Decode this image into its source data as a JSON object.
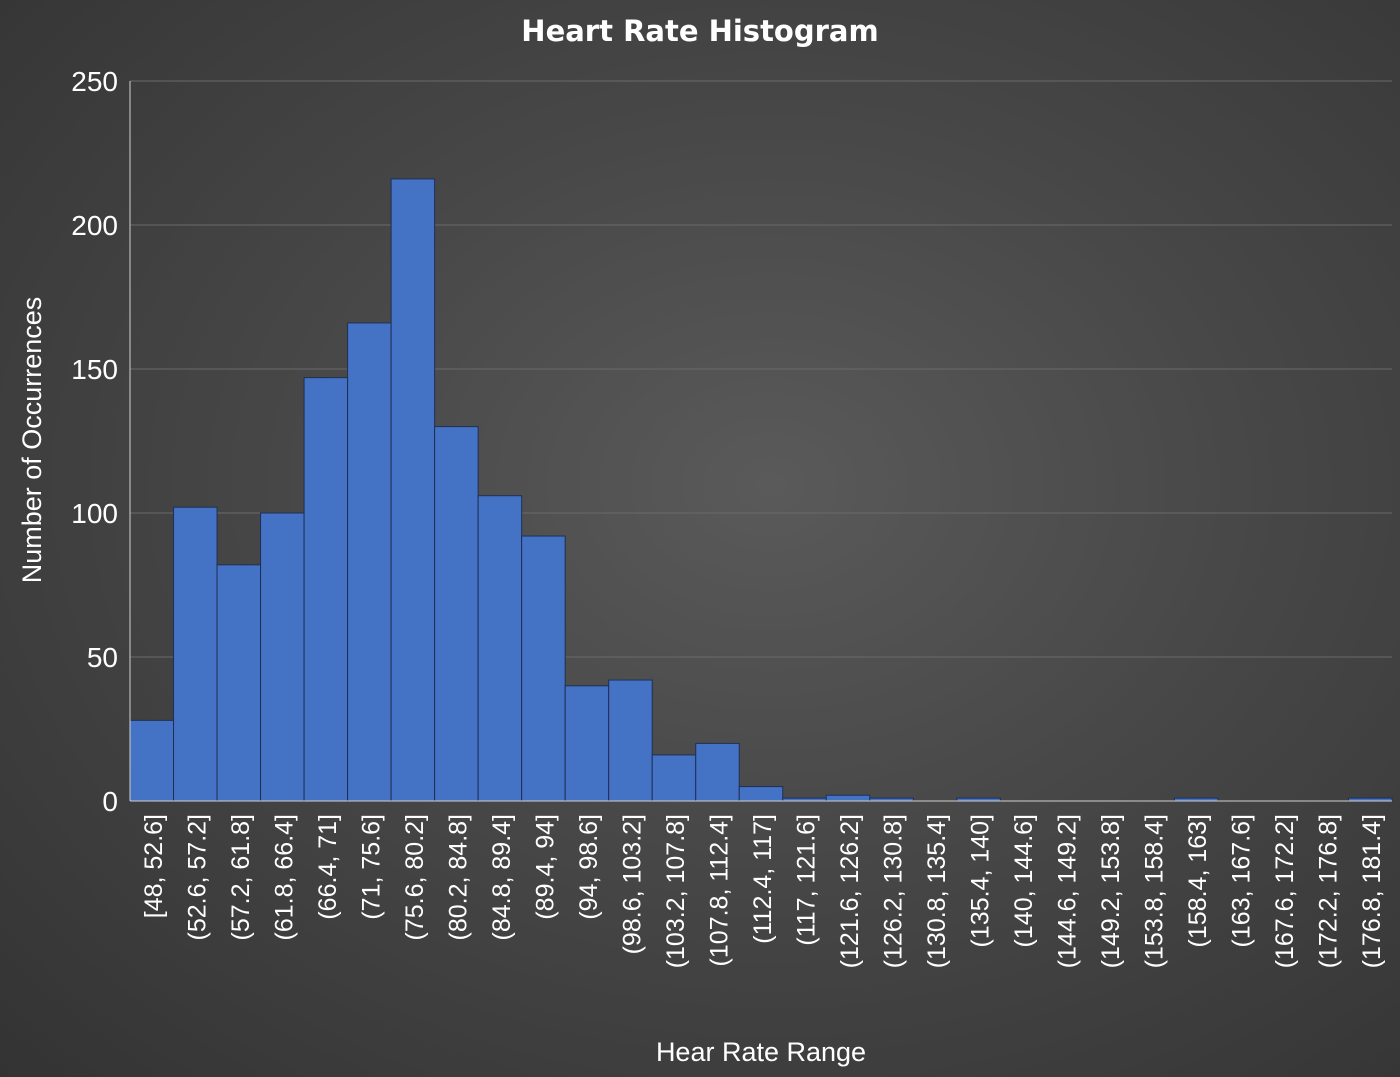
{
  "chart_data": {
    "type": "bar",
    "title": "Heart Rate Histogram",
    "xlabel": "Hear Rate Range",
    "ylabel": "Number of Occurrences",
    "ylim": [
      0,
      250
    ],
    "yticks": [
      0,
      50,
      100,
      150,
      200,
      250
    ],
    "grid": true,
    "legend": "none",
    "bar_color": "#4472C4",
    "categories": [
      "[48, 52.6]",
      "(52.6, 57.2]",
      "(57.2, 61.8]",
      "(61.8, 66.4]",
      "(66.4, 71]",
      "(71, 75.6]",
      "(75.6, 80.2]",
      "(80.2, 84.8]",
      "(84.8, 89.4]",
      "(89.4, 94]",
      "(94, 98.6]",
      "(98.6, 103.2]",
      "(103.2, 107.8]",
      "(107.8, 112.4]",
      "(112.4, 117]",
      "(117, 121.6]",
      "(121.6, 126.2]",
      "(126.2, 130.8]",
      "(130.8, 135.4]",
      "(135.4, 140]",
      "(140, 144.6]",
      "(144.6, 149.2]",
      "(149.2, 153.8]",
      "(153.8, 158.4]",
      "(158.4, 163]",
      "(163, 167.6]",
      "(167.6, 172.2]",
      "(172.2, 176.8]",
      "(176.8, 181.4]"
    ],
    "values": [
      28,
      102,
      82,
      100,
      147,
      166,
      216,
      130,
      106,
      92,
      40,
      42,
      16,
      20,
      5,
      1,
      2,
      1,
      0,
      1,
      0,
      0,
      0,
      0,
      1,
      0,
      0,
      0,
      1
    ]
  }
}
